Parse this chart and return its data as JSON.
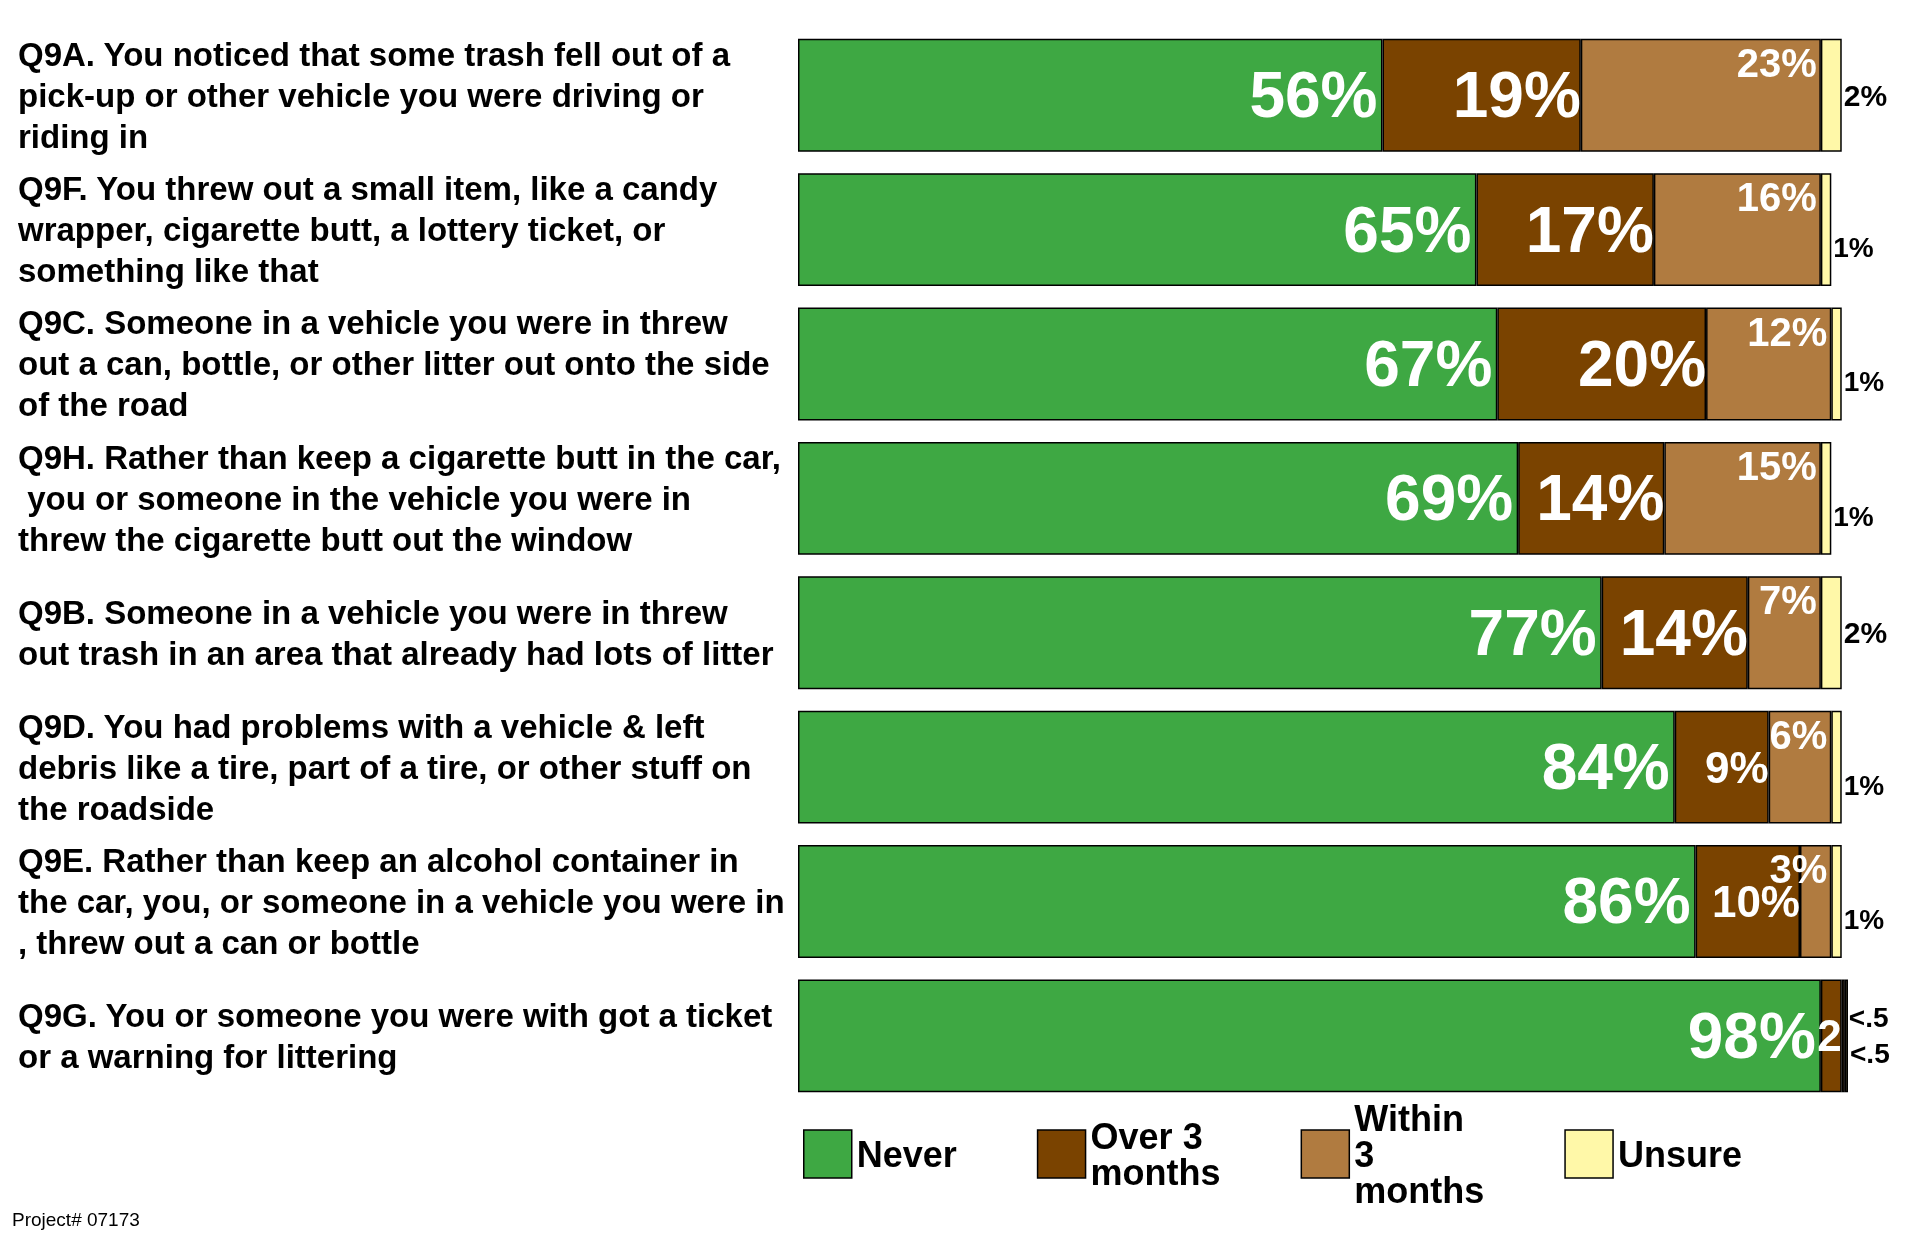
{
  "chart_data": {
    "type": "bar",
    "orientation": "horizontal",
    "stacked": true,
    "legend": "bottom",
    "categories": [
      "Q9A. You noticed that some trash fell out of a pick-up or other vehicle you were driving or riding in",
      "Q9F. You threw out a small item, like a candy wrapper, cigarette butt, a lottery ticket, or something like that",
      "Q9C. Someone in a vehicle you were in threw out a can, bottle, or other litter out onto the side of the road",
      "Q9H. Rather than keep a cigarette butt in the car, you or someone in the vehicle you were in threw the cigarette butt out the window",
      "Q9B. Someone in a vehicle you were in threw out trash in an area that already had lots of litter",
      "Q9D. You had problems with a vehicle & left debris like a tire, part of a tire, or other stuff on the roadside",
      "Q9E. Rather than keep an alcohol container in the car, you, or someone in a vehicle you were in, threw out a can or bottle",
      "Q9G. You or someone you were with got a ticket or a warning for littering"
    ],
    "series": [
      {
        "name": "Never",
        "color": "#3ea843",
        "values": [
          56,
          65,
          67,
          69,
          77,
          84,
          86,
          98
        ],
        "value_labels": [
          "56%",
          "65%",
          "67%",
          "69%",
          "77%",
          "84%",
          "86%",
          "98%"
        ]
      },
      {
        "name": "Over 3 months",
        "color": "#7a4300",
        "values": [
          19,
          17,
          20,
          14,
          14,
          9,
          10,
          2
        ],
        "value_labels": [
          "19%",
          "17%",
          "20%",
          "14%",
          "14%",
          "9%",
          "10%",
          "2"
        ]
      },
      {
        "name": "Within 3 months",
        "color": "#b07b40",
        "values": [
          23,
          16,
          12,
          15,
          7,
          6,
          3,
          0.3
        ],
        "value_labels": [
          "23%",
          "16%",
          "12%",
          "15%",
          "7%",
          "6%",
          "3%",
          "<.5"
        ]
      },
      {
        "name": "Unsure",
        "color": "#fff8a8",
        "values": [
          2,
          1,
          1,
          1,
          2,
          1,
          1,
          0.3
        ],
        "value_labels": [
          "2%",
          "1%",
          "1%",
          "1%",
          "2%",
          "1%",
          "1%",
          "<.5"
        ]
      }
    ],
    "annotations": [
      "Project# 07173"
    ]
  }
}
